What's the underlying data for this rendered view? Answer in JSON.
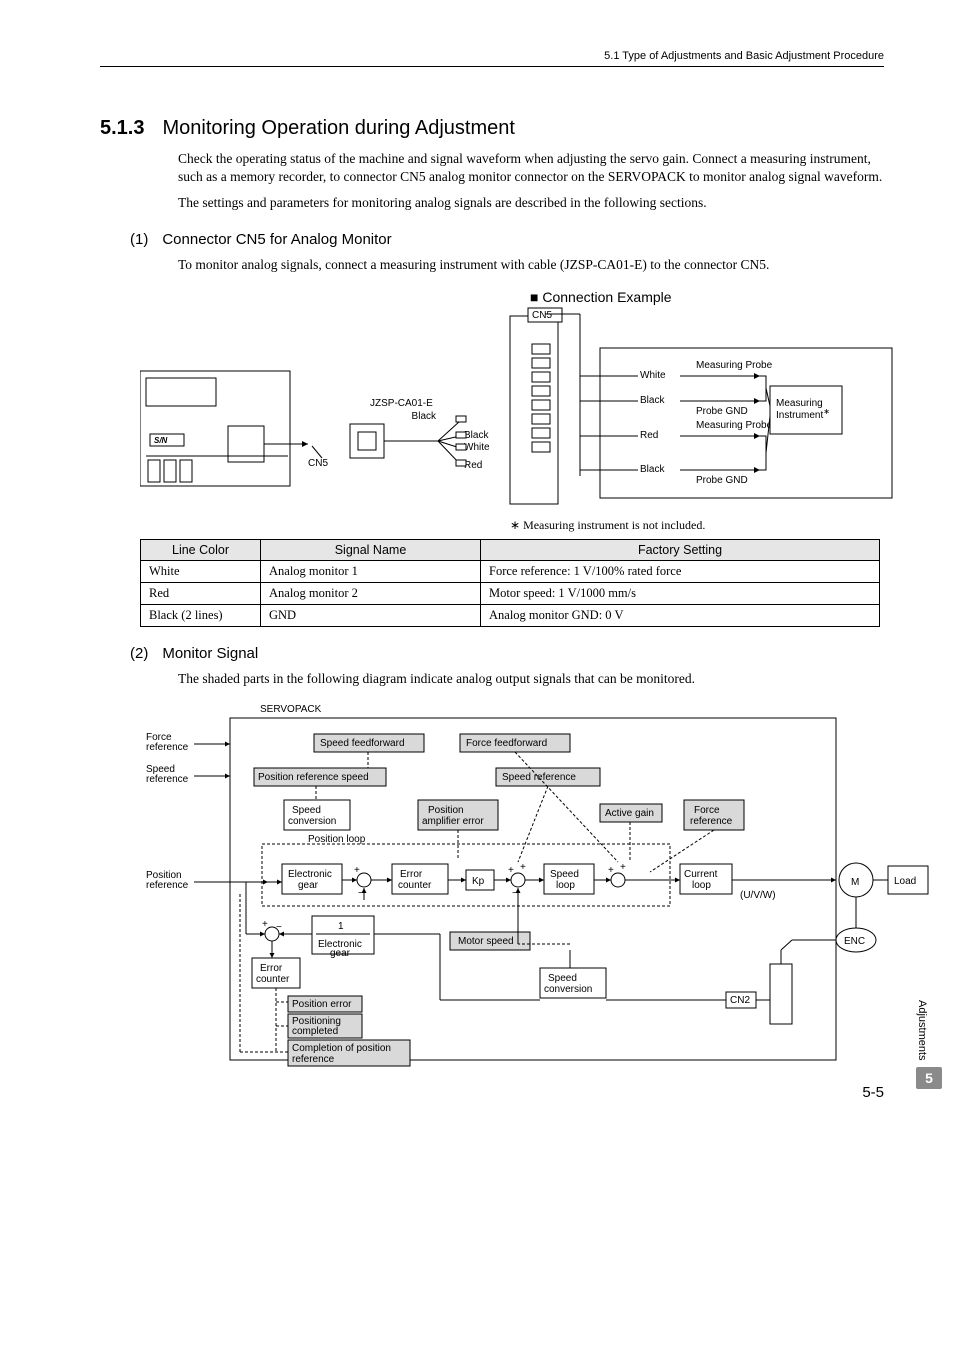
{
  "header": {
    "crumb": "5.1  Type of Adjustments and Basic Adjustment Procedure"
  },
  "section": {
    "num": "5.1.3",
    "title": "Monitoring Operation during Adjustment"
  },
  "para1": "Check the operating status of the machine and signal waveform when adjusting the servo gain. Connect a measuring instrument, such as a memory recorder, to connector CN5 analog monitor connector on the SERVOPACK to monitor analog signal waveform.",
  "para2": "The settings and parameters for monitoring analog signals are described in the following sections.",
  "sub1": {
    "num": "(1)",
    "title": "Connector CN5 for Analog Monitor"
  },
  "sub1_text": "To monitor analog signals, connect a measuring instrument with cable (JZSP-CA01-E) to the connector CN5.",
  "connExample": "Connection Example",
  "cable": {
    "part": "JZSP-CA01-E",
    "wires": {
      "black1": "Black",
      "black2": "Black",
      "white": "White",
      "red": "Red"
    },
    "cn5": "CN5",
    "sn": "S/N"
  },
  "right": {
    "cn5": "CN5",
    "white": "White",
    "black": "Black",
    "red": "Red",
    "mp": "Measuring\nProbe",
    "pg": "Probe GND",
    "inst": "Measuring\nInstrument"
  },
  "note": "Measuring instrument is not included.",
  "table": {
    "headers": [
      "Line Color",
      "Signal Name",
      "Factory Setting"
    ],
    "rows": [
      [
        "White",
        "Analog monitor 1",
        "Force reference: 1 V/100% rated force"
      ],
      [
        "Red",
        "Analog monitor 2",
        "Motor speed: 1 V/1000 mm/s"
      ],
      [
        "Black (2 lines)",
        "GND",
        "Analog monitor GND: 0 V"
      ]
    ]
  },
  "sub2": {
    "num": "(2)",
    "title": "Monitor Signal"
  },
  "sub2_text": "The shaded parts in the following diagram indicate analog output signals that can be monitored.",
  "diag": {
    "title": "SERVOPACK",
    "force_ref": "Force\nreference",
    "speed_ref": "Speed\nreference",
    "pos_ref": "Position\nreference",
    "speed_ff": "Speed feedforward",
    "force_ff": "Force feedforward",
    "pos_ref_spd": "Position reference speed",
    "speed_ref_box": "Speed reference",
    "speed_conv": "Speed\nconversion",
    "pos_amp_err": "Position\namplifier error",
    "active_gain": "Active gain",
    "force_ref_box": "Force\nreference",
    "pos_loop": "Position loop",
    "egear": "Electronic\ngear",
    "err_counter": "Error\ncounter",
    "kp": "Kp",
    "speed_loop": "Speed\nloop",
    "current_loop": "Current\nloop",
    "motor_speed": "Motor speed",
    "speed_conv2": "Speed\nconversion",
    "egear2": "Electronic\ngear",
    "err_counter2": "Error\ncounter",
    "pos_err": "Position error",
    "pos_comp": "Positioning\ncompleted",
    "comp_pos_ref": "Completion of position\nreference",
    "uvw": "(U/V/W)",
    "m": "M",
    "load": "Load",
    "enc": "ENC",
    "cn2": "CN2",
    "one": "1"
  },
  "side": {
    "label": "Adjustments",
    "num": "5"
  },
  "pagenum": "5-5"
}
